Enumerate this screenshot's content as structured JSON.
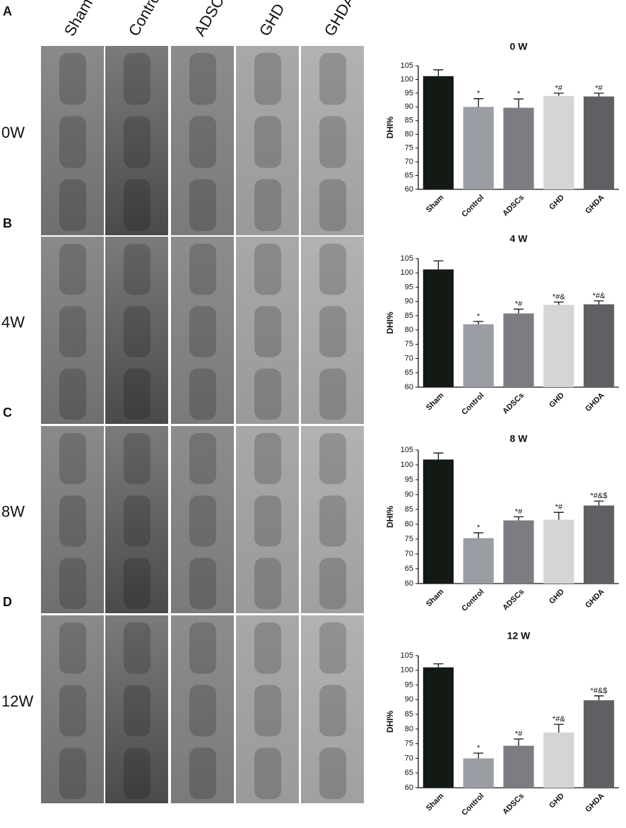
{
  "figure": {
    "panel_labels": [
      "A",
      "B",
      "C",
      "D"
    ],
    "columns": [
      "Sham",
      "Control",
      "ADSCs",
      "GHD",
      "GHDA"
    ],
    "rows": [
      "0W",
      "4W",
      "8W",
      "12W"
    ]
  },
  "chart_data": [
    {
      "type": "bar",
      "title": "0 W",
      "y_label": "DHI%",
      "categories": [
        "Sham",
        "Control",
        "ADSCs",
        "GHD",
        "GHDA"
      ],
      "values": [
        101.2,
        90,
        89.7,
        94,
        93.8
      ],
      "errors": [
        2.3,
        3,
        3.2,
        1,
        1.2
      ],
      "annotations": [
        null,
        "*",
        "*",
        "*#",
        "*#"
      ],
      "colors": [
        "#121a13",
        "#9b9da4",
        "#7c7d83",
        "#d4d5d7",
        "#606064"
      ],
      "ylim": [
        60,
        105
      ],
      "yticks": [
        60,
        65,
        70,
        75,
        80,
        85,
        90,
        95,
        100,
        105
      ]
    },
    {
      "type": "bar",
      "title": "4 W",
      "y_label": "DHI%",
      "categories": [
        "Sham",
        "Control",
        "ADSCs",
        "GHD",
        "GHDA"
      ],
      "values": [
        101.2,
        82,
        85.8,
        88.8,
        89
      ],
      "errors": [
        3,
        1,
        1.5,
        1,
        1.2
      ],
      "annotations": [
        null,
        "*",
        "*#",
        "*#&",
        "*#&"
      ],
      "colors": [
        "#121a13",
        "#9b9da4",
        "#7c7d83",
        "#d4d5d7",
        "#606064"
      ],
      "ylim": [
        60,
        105
      ],
      "yticks": [
        60,
        65,
        70,
        75,
        80,
        85,
        90,
        95,
        100,
        105
      ]
    },
    {
      "type": "bar",
      "title": "8 W",
      "y_label": "DHI%",
      "categories": [
        "Sham",
        "Control",
        "ADSCs",
        "GHD",
        "GHDA"
      ],
      "values": [
        101.8,
        75.3,
        81.3,
        81.5,
        86.3
      ],
      "errors": [
        2.2,
        1.8,
        1.2,
        2.5,
        1.5
      ],
      "annotations": [
        null,
        "*",
        "*#",
        "*#",
        "*#&$"
      ],
      "colors": [
        "#121a13",
        "#9b9da4",
        "#7c7d83",
        "#d4d5d7",
        "#606064"
      ],
      "ylim": [
        60,
        105
      ],
      "yticks": [
        60,
        65,
        70,
        75,
        80,
        85,
        90,
        95,
        100,
        105
      ]
    },
    {
      "type": "bar",
      "title": "12 W",
      "y_label": "DHI%",
      "categories": [
        "Sham",
        "Control",
        "ADSCs",
        "GHD",
        "GHDA"
      ],
      "values": [
        101,
        70,
        74.3,
        78.8,
        89.8
      ],
      "errors": [
        1.2,
        1.8,
        2.3,
        2.8,
        1.5
      ],
      "annotations": [
        null,
        "*",
        "*#",
        "*#&",
        "*#&$"
      ],
      "colors": [
        "#121a13",
        "#9b9da4",
        "#7c7d83",
        "#d4d5d7",
        "#606064"
      ],
      "ylim": [
        60,
        105
      ],
      "yticks": [
        60,
        65,
        70,
        75,
        80,
        85,
        90,
        95,
        100,
        105
      ]
    }
  ]
}
